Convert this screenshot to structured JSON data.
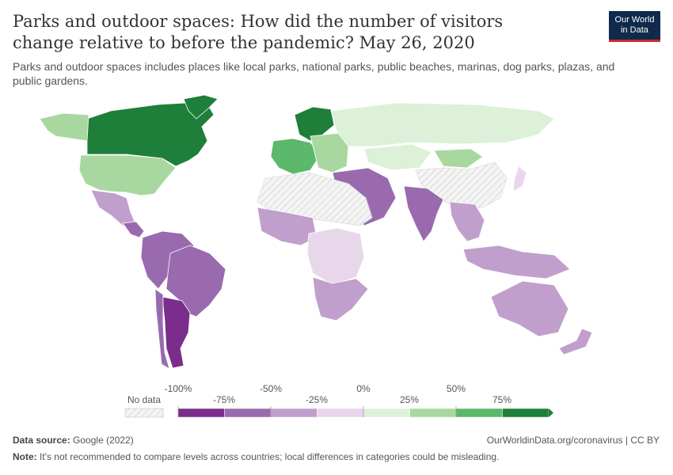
{
  "title": "Parks and outdoor spaces: How did the number of visitors change relative to before the pandemic? May 26, 2020",
  "subtitle": "Parks and outdoor spaces includes places like local parks, national parks, public beaches, marinas, dog parks, plazas, and public gardens.",
  "logo": {
    "line1": "Our World",
    "line2": "in Data",
    "bg": "#0f2a4a",
    "accent": "#cc2a2a"
  },
  "legend": {
    "no_data_label": "No data",
    "ticks_top": [
      "-100%",
      "-50%",
      "0%",
      "50%"
    ],
    "ticks_bottom": [
      "-75%",
      "-25%",
      "25%",
      "75%"
    ],
    "colors": [
      "#7b2d8b",
      "#9a6aae",
      "#c19fcc",
      "#e8d6eb",
      "#dcf1d7",
      "#a8d8a0",
      "#5cb86a",
      "#1e7f3a"
    ]
  },
  "regions": [
    {
      "name": "Canada",
      "color": "#1e7f3a"
    },
    {
      "name": "Greenland",
      "color": "#1e7f3a"
    },
    {
      "name": "Alaska",
      "color": "#a8d8a0"
    },
    {
      "name": "United States",
      "color": "#a8d8a0"
    },
    {
      "name": "Mexico",
      "color": "#c19fcc"
    },
    {
      "name": "Central America",
      "color": "#9a6aae"
    },
    {
      "name": "Northern South America",
      "color": "#9a6aae"
    },
    {
      "name": "Brazil",
      "color": "#9a6aae"
    },
    {
      "name": "Argentina",
      "color": "#7b2d8b"
    },
    {
      "name": "Chile",
      "color": "#9a6aae"
    },
    {
      "name": "Scandinavia",
      "color": "#1e7f3a"
    },
    {
      "name": "Western Europe",
      "color": "#5cb86a"
    },
    {
      "name": "Eastern Europe",
      "color": "#a8d8a0"
    },
    {
      "name": "Russia",
      "color": "#dcf1d7"
    },
    {
      "name": "Kazakhstan",
      "color": "#dcf1d7"
    },
    {
      "name": "Mongolia",
      "color": "#a8d8a0"
    },
    {
      "name": "China",
      "color": "nodata"
    },
    {
      "name": "Middle East",
      "color": "#9a6aae"
    },
    {
      "name": "India",
      "color": "#9a6aae"
    },
    {
      "name": "Southeast Asia",
      "color": "#c19fcc"
    },
    {
      "name": "Indonesia",
      "color": "#c19fcc"
    },
    {
      "name": "North Africa",
      "color": "nodata"
    },
    {
      "name": "West Africa",
      "color": "#c19fcc"
    },
    {
      "name": "Central Africa",
      "color": "#e8d6eb"
    },
    {
      "name": "Southern Africa",
      "color": "#c19fcc"
    },
    {
      "name": "Australia",
      "color": "#c19fcc"
    },
    {
      "name": "New Zealand",
      "color": "#c19fcc"
    },
    {
      "name": "Japan",
      "color": "#e8d6eb"
    }
  ],
  "footer": {
    "source_label": "Data source:",
    "source_text": "Google (2022)",
    "url": "OurWorldinData.org/coronavirus | CC BY",
    "note_label": "Note:",
    "note_text": "It's not recommended to compare levels across countries; local differences in categories could be misleading."
  }
}
